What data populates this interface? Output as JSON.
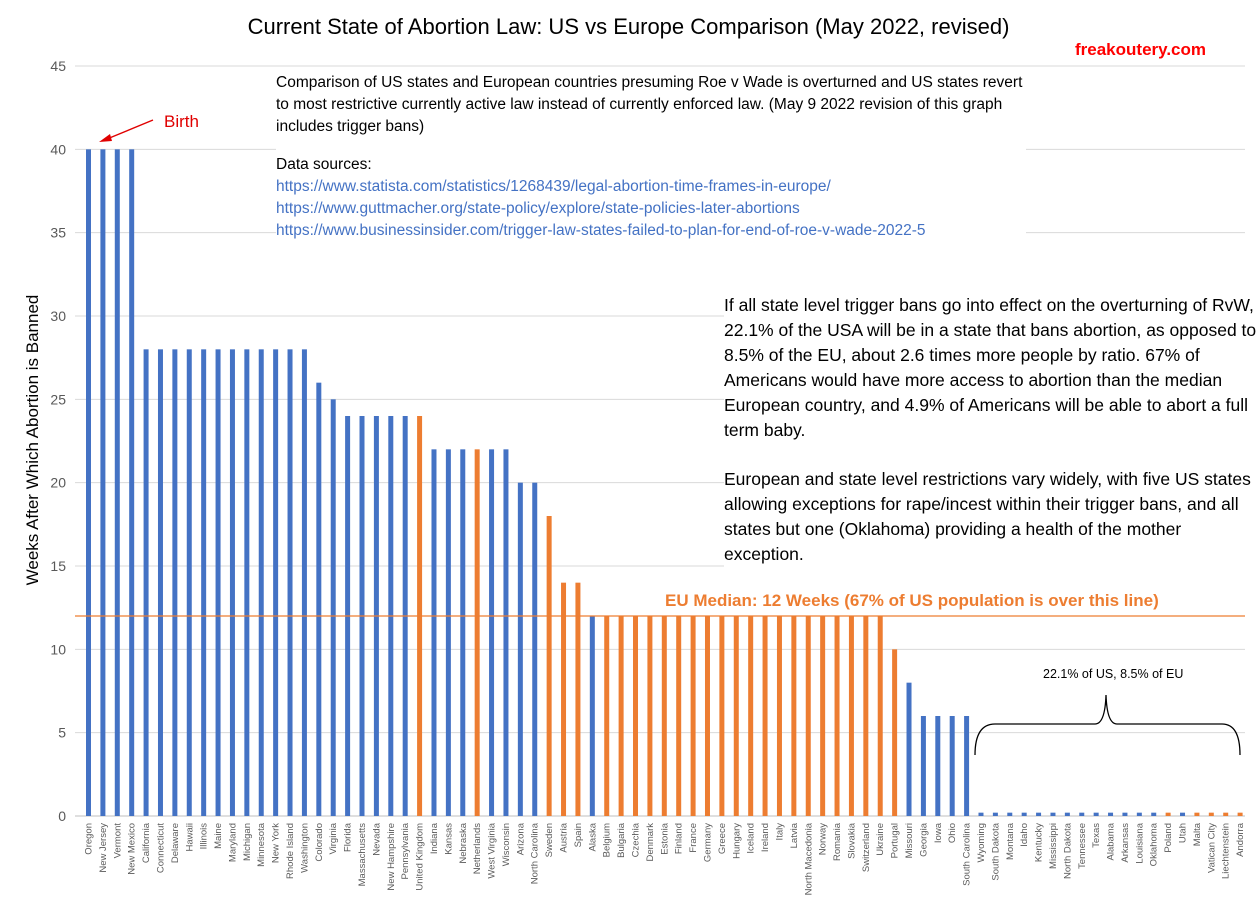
{
  "chart_data": {
    "type": "bar",
    "title": "Current State of Abortion Law: US vs Europe Comparison (May 2022, revised)",
    "watermark": "freakoutery.com",
    "ylabel": "Weeks After Which Abortion is Banned",
    "ylim": [
      0,
      45
    ],
    "yticks": [
      0,
      5,
      10,
      15,
      20,
      25,
      30,
      35,
      40,
      45
    ],
    "grid": true,
    "colors": {
      "us": "#4472c4",
      "eu": "#ed7d31",
      "median_line": "#ed7d31",
      "birth": "#e00000"
    },
    "categories": [
      "Oregon",
      "New Jersey",
      "Vermont",
      "New Mexico",
      "California",
      "Connecticut",
      "Delaware",
      "Hawaii",
      "Illinois",
      "Maine",
      "Maryland",
      "Michigan",
      "Minnesota",
      "New York",
      "Rhode Island",
      "Washington",
      "Colorado",
      "Virginia",
      "Florida",
      "Massachusetts",
      "Nevada",
      "New Hampshire",
      "Pennsylvania",
      "United Kingdom",
      "Indiana",
      "Kansas",
      "Nebraska",
      "Netherlands",
      "West Virginia",
      "Wisconsin",
      "Arizona",
      "North Carolina",
      "Sweden",
      "Austria",
      "Spain",
      "Alaska",
      "Belgium",
      "Bulgaria",
      "Czechia",
      "Denmark",
      "Estonia",
      "Finland",
      "France",
      "Germany",
      "Greece",
      "Hungary",
      "Iceland",
      "Ireland",
      "Italy",
      "Latvia",
      "North Macedonia",
      "Norway",
      "Romania",
      "Slovakia",
      "Switzerland",
      "Ukraine",
      "Portugal",
      "Missouri",
      "Georgia",
      "Iowa",
      "Ohio",
      "South Carolina",
      "Wyoming",
      "South Dakota",
      "Montana",
      "Idaho",
      "Kentucky",
      "Mississippi",
      "North Dakota",
      "Tennessee",
      "Texas",
      "Alabama",
      "Arkansas",
      "Louisiana",
      "Oklahoma",
      "Poland",
      "Utah",
      "Malta",
      "Vatican City",
      "Liechtenstein",
      "Andorra"
    ],
    "values": [
      40,
      40,
      40,
      40,
      28,
      28,
      28,
      28,
      28,
      28,
      28,
      28,
      28,
      28,
      28,
      28,
      26,
      25,
      24,
      24,
      24,
      24,
      24,
      24,
      22,
      22,
      22,
      22,
      22,
      22,
      20,
      20,
      18,
      14,
      14,
      12,
      12,
      12,
      12,
      12,
      12,
      12,
      12,
      12,
      12,
      12,
      12,
      12,
      12,
      12,
      12,
      12,
      12,
      12,
      12,
      12,
      10,
      8,
      6,
      6,
      6,
      6,
      0.2,
      0.2,
      0.2,
      0.2,
      0.2,
      0.2,
      0.2,
      0.2,
      0.2,
      0.2,
      0.2,
      0.2,
      0.2,
      0.2,
      0.2,
      0.2,
      0.2,
      0.2,
      0.2
    ],
    "groups": [
      "US",
      "US",
      "US",
      "US",
      "US",
      "US",
      "US",
      "US",
      "US",
      "US",
      "US",
      "US",
      "US",
      "US",
      "US",
      "US",
      "US",
      "US",
      "US",
      "US",
      "US",
      "US",
      "US",
      "EU",
      "US",
      "US",
      "US",
      "EU",
      "US",
      "US",
      "US",
      "US",
      "EU",
      "EU",
      "EU",
      "US",
      "EU",
      "EU",
      "EU",
      "EU",
      "EU",
      "EU",
      "EU",
      "EU",
      "EU",
      "EU",
      "EU",
      "EU",
      "EU",
      "EU",
      "EU",
      "EU",
      "EU",
      "EU",
      "EU",
      "EU",
      "EU",
      "US",
      "US",
      "US",
      "US",
      "US",
      "US",
      "US",
      "US",
      "US",
      "US",
      "US",
      "US",
      "US",
      "US",
      "US",
      "US",
      "US",
      "US",
      "EU",
      "US",
      "EU",
      "EU",
      "EU",
      "EU"
    ],
    "median": {
      "value": 12,
      "label": "EU Median: 12 Weeks (67% of US population is over this line)"
    },
    "annotations": {
      "birth": "Birth",
      "brace": "22.1% of US, 8.5% of EU"
    }
  },
  "notes": {
    "intro": "Comparison of US states and European countries presuming Roe v Wade is overturned and US states revert to most restrictive currently active law instead of currently enforced law. (May 9 2022 revision of this graph includes trigger bans)",
    "sources_heading": "Data sources:",
    "sources": [
      "https://www.statista.com/statistics/1268439/legal-abortion-time-frames-in-europe/",
      "https://www.guttmacher.org/state-policy/explore/state-policies-later-abortions",
      "https://www.businessinsider.com/trigger-law-states-failed-to-plan-for-end-of-roe-v-wade-2022-5"
    ]
  },
  "summary": {
    "p1": "If all state level trigger bans go into effect on the overturning of RvW, 22.1% of the USA will be in a state that bans abortion, as opposed to 8.5% of the EU, about 2.6 times more people by ratio. 67% of Americans would have more access to abortion than the median European country, and 4.9% of Americans will be able to abort a full term baby.",
    "p2": "European and state level restrictions vary widely, with five US states allowing exceptions for rape/incest within their trigger bans, and all states but one (Oklahoma) providing a health of the mother exception."
  }
}
